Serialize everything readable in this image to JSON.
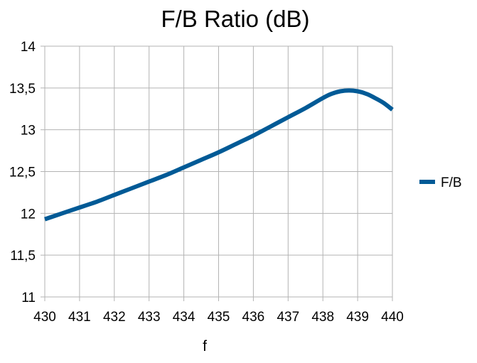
{
  "chart_data": {
    "type": "line",
    "title": "F/B Ratio (dB)",
    "xlabel": "f",
    "ylabel": "",
    "xlim": [
      430,
      440
    ],
    "ylim": [
      11,
      14
    ],
    "x_ticks": [
      "430",
      "431",
      "432",
      "433",
      "434",
      "435",
      "436",
      "437",
      "438",
      "439",
      "440"
    ],
    "y_ticks": [
      "11",
      "11,5",
      "12",
      "12,5",
      "13",
      "13,5",
      "14"
    ],
    "grid": true,
    "legend": "right",
    "series": [
      {
        "name": "F/B",
        "color": "#005a96",
        "x": [
          430,
          430.5,
          431,
          431.5,
          432,
          432.5,
          433,
          433.5,
          434,
          434.5,
          435,
          435.5,
          436,
          436.5,
          437,
          437.5,
          438,
          438.25,
          438.5,
          438.75,
          439,
          439.25,
          439.5,
          439.75,
          440
        ],
        "y": [
          11.93,
          12.0,
          12.07,
          12.14,
          12.22,
          12.3,
          12.38,
          12.46,
          12.55,
          12.64,
          12.73,
          12.83,
          12.93,
          13.04,
          13.15,
          13.26,
          13.38,
          13.43,
          13.46,
          13.47,
          13.46,
          13.43,
          13.38,
          13.32,
          13.24
        ]
      }
    ]
  }
}
